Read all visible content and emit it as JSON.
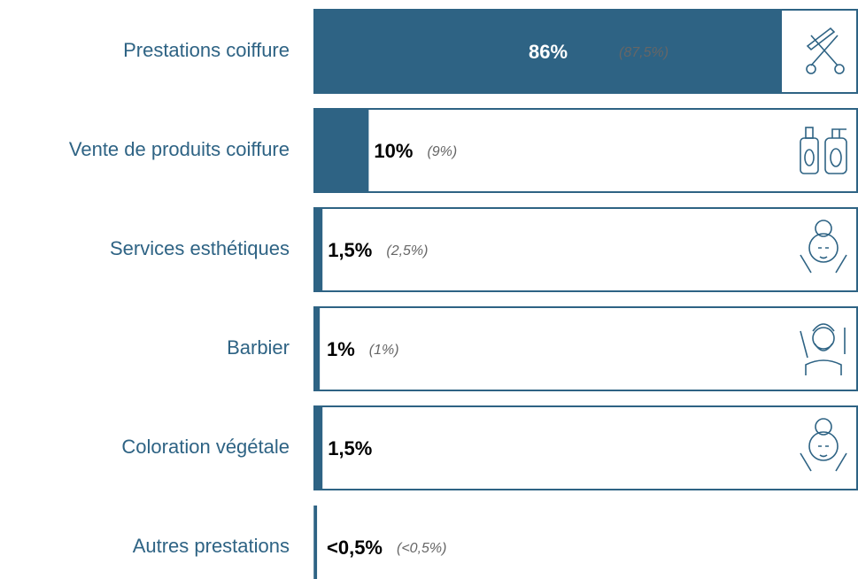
{
  "chart_data": {
    "type": "bar",
    "orientation": "horizontal",
    "categories": [
      "Prestations coiffure",
      "Vente de produits coiffure",
      "Services esthétiques",
      "Barbier",
      "Coloration végétale",
      "Autres prestations"
    ],
    "values": [
      86,
      10,
      1.5,
      1,
      1.5,
      0.5
    ],
    "value_labels": [
      "86%",
      "10%",
      "1,5%",
      "1%",
      "1,5%",
      "<0,5%"
    ],
    "notes": [
      "(87,5%)",
      "(9%)",
      "(2,5%)",
      "(1%)",
      null,
      "(<0,5%)"
    ],
    "color": "#2e6384",
    "xlim": [
      0,
      100
    ]
  }
}
